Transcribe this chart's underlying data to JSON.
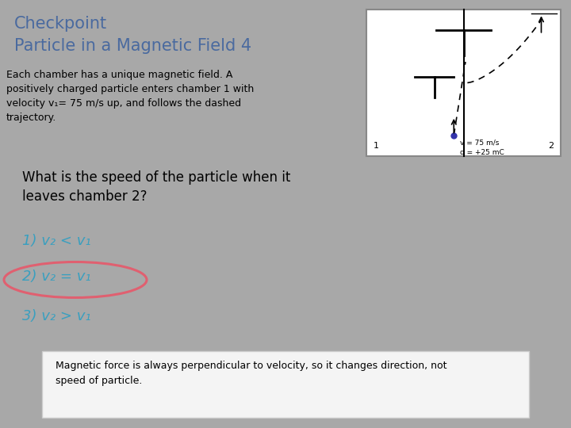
{
  "bg_color": "#a8a8a8",
  "title_line1": "Checkpoint",
  "title_line2": "Particle in a Magnetic Field 4",
  "title_color": "#4a6a9f",
  "title_fontsize": 15,
  "subtitle_text": "Each chamber has a unique magnetic field. A\npositively charged particle enters chamber 1 with\nvelocity v₁= 75 m/s up, and follows the dashed\ntrajectory.",
  "subtitle_fontsize": 9,
  "question": "What is the speed of the particle when it\nleaves chamber 2?",
  "question_fontsize": 12,
  "option1": "1) v₂ < v₁",
  "option2": "2) v₂ = v₁",
  "option3": "3) v₂ > v₁",
  "option_color": "#3a9fbf",
  "option_fontsize": 13,
  "answer_text": "Magnetic force is always perpendicular to velocity, so it changes direction, not\nspeed of particle.",
  "answer_fontsize": 9,
  "answer_bg": "#f4f4f4",
  "ellipse_color": "#e06070"
}
